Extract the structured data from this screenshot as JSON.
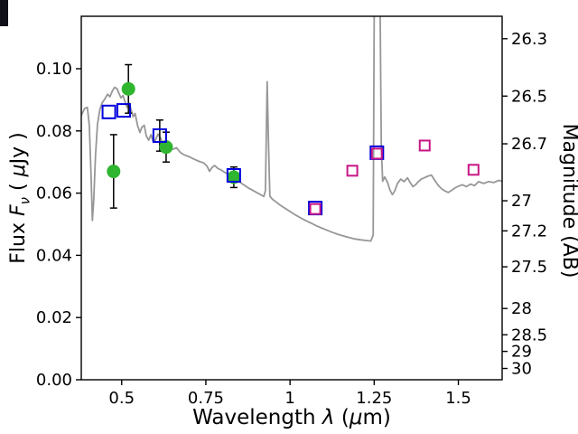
{
  "chart_data": {
    "type": "line+scatter",
    "title": "",
    "xlabel_parts": {
      "prefix": "Wavelength ",
      "lambda": "λ",
      "open": " (",
      "mu": "μ",
      "close": "m)"
    },
    "ylabel_left_parts": {
      "prefix": "Flux ",
      "f": "F",
      "nu": "ν",
      "open": " ( ",
      "mu": "μ",
      "close": "Jy )"
    },
    "ylabel_right": "Magnitude (AB)",
    "xlim": [
      0.38,
      1.63
    ],
    "ylim_flux": [
      0.0,
      0.11686
    ],
    "ab_zeropoint": 23.9,
    "grid": false,
    "legend": "none",
    "x_ticks": [
      {
        "v": 0.5,
        "label": "0.5"
      },
      {
        "v": 0.75,
        "label": "0.75"
      },
      {
        "v": 1.0,
        "label": "1"
      },
      {
        "v": 1.25,
        "label": "1.25"
      },
      {
        "v": 1.5,
        "label": "1.5"
      }
    ],
    "y_ticks_flux": [
      {
        "v": 0.0,
        "label": "0.00"
      },
      {
        "v": 0.02,
        "label": "0.02"
      },
      {
        "v": 0.04,
        "label": "0.04"
      },
      {
        "v": 0.06,
        "label": "0.06"
      },
      {
        "v": 0.08,
        "label": "0.08"
      },
      {
        "v": 0.1,
        "label": "0.10"
      }
    ],
    "y_ticks_mag": [
      {
        "v": 26.3,
        "label": "26.3"
      },
      {
        "v": 26.5,
        "label": "26.5"
      },
      {
        "v": 26.7,
        "label": "26.7"
      },
      {
        "v": 27.0,
        "label": "27"
      },
      {
        "v": 27.2,
        "label": "27.2"
      },
      {
        "v": 27.5,
        "label": "27.5"
      },
      {
        "v": 28.0,
        "label": "28"
      },
      {
        "v": 28.5,
        "label": "28.5"
      },
      {
        "v": 29.0,
        "label": "29"
      },
      {
        "v": 30.0,
        "label": "30"
      }
    ],
    "series": [
      {
        "name": "model-spectrum",
        "type": "line",
        "color": "#979797",
        "linewidth": 1.8,
        "points": [
          [
            0.38,
            0.085
          ],
          [
            0.39,
            0.0872
          ],
          [
            0.398,
            0.0876
          ],
          [
            0.404,
            0.0818
          ],
          [
            0.409,
            0.066
          ],
          [
            0.413,
            0.0512
          ],
          [
            0.417,
            0.0578
          ],
          [
            0.422,
            0.0718
          ],
          [
            0.428,
            0.082
          ],
          [
            0.435,
            0.0868
          ],
          [
            0.442,
            0.089
          ],
          [
            0.45,
            0.0903
          ],
          [
            0.458,
            0.0918
          ],
          [
            0.465,
            0.091
          ],
          [
            0.472,
            0.0928
          ],
          [
            0.479,
            0.094
          ],
          [
            0.486,
            0.0936
          ],
          [
            0.492,
            0.092
          ],
          [
            0.498,
            0.0906
          ],
          [
            0.504,
            0.0914
          ],
          [
            0.51,
            0.0893
          ],
          [
            0.516,
            0.0876
          ],
          [
            0.522,
            0.089
          ],
          [
            0.528,
            0.0868
          ],
          [
            0.534,
            0.0846
          ],
          [
            0.54,
            0.0856
          ],
          [
            0.547,
            0.0818
          ],
          [
            0.554,
            0.0795
          ],
          [
            0.56,
            0.0812
          ],
          [
            0.567,
            0.0818
          ],
          [
            0.573,
            0.0784
          ],
          [
            0.58,
            0.077
          ],
          [
            0.587,
            0.0788
          ],
          [
            0.594,
            0.0763
          ],
          [
            0.601,
            0.0773
          ],
          [
            0.608,
            0.079
          ],
          [
            0.616,
            0.0776
          ],
          [
            0.624,
            0.0754
          ],
          [
            0.632,
            0.0763
          ],
          [
            0.642,
            0.0748
          ],
          [
            0.652,
            0.0741
          ],
          [
            0.663,
            0.0746
          ],
          [
            0.675,
            0.073
          ],
          [
            0.688,
            0.0722
          ],
          [
            0.701,
            0.0717
          ],
          [
            0.715,
            0.0709
          ],
          [
            0.73,
            0.0702
          ],
          [
            0.744,
            0.0697
          ],
          [
            0.754,
            0.0686
          ],
          [
            0.761,
            0.067
          ],
          [
            0.768,
            0.0682
          ],
          [
            0.776,
            0.0689
          ],
          [
            0.786,
            0.0679
          ],
          [
            0.796,
            0.0674
          ],
          [
            0.806,
            0.0667
          ],
          [
            0.816,
            0.0661
          ],
          [
            0.826,
            0.0654
          ],
          [
            0.836,
            0.0647
          ],
          [
            0.846,
            0.0639
          ],
          [
            0.856,
            0.0631
          ],
          [
            0.866,
            0.0624
          ],
          [
            0.876,
            0.0617
          ],
          [
            0.886,
            0.0611
          ],
          [
            0.896,
            0.0605
          ],
          [
            0.906,
            0.0599
          ],
          [
            0.915,
            0.0594
          ],
          [
            0.922,
            0.0589
          ],
          [
            0.927,
            0.0608
          ],
          [
            0.932,
            0.0958
          ],
          [
            0.936,
            0.076
          ],
          [
            0.94,
            0.059
          ],
          [
            0.948,
            0.058
          ],
          [
            0.958,
            0.0572
          ],
          [
            0.97,
            0.0562
          ],
          [
            0.984,
            0.0552
          ],
          [
            1.0,
            0.0541
          ],
          [
            1.016,
            0.053
          ],
          [
            1.032,
            0.052
          ],
          [
            1.048,
            0.0511
          ],
          [
            1.064,
            0.0503
          ],
          [
            1.08,
            0.0494
          ],
          [
            1.096,
            0.0487
          ],
          [
            1.112,
            0.048
          ],
          [
            1.128,
            0.0473
          ],
          [
            1.144,
            0.0467
          ],
          [
            1.16,
            0.0462
          ],
          [
            1.176,
            0.0457
          ],
          [
            1.192,
            0.0453
          ],
          [
            1.208,
            0.045
          ],
          [
            1.224,
            0.0448
          ],
          [
            1.24,
            0.0446
          ],
          [
            1.247,
            0.0465
          ],
          [
            1.251,
            0.14
          ],
          [
            1.266,
            0.14
          ],
          [
            1.271,
            0.075
          ],
          [
            1.275,
            0.0638
          ],
          [
            1.281,
            0.0652
          ],
          [
            1.289,
            0.0636
          ],
          [
            1.297,
            0.0609
          ],
          [
            1.304,
            0.0595
          ],
          [
            1.311,
            0.0607
          ],
          [
            1.319,
            0.0631
          ],
          [
            1.329,
            0.0645
          ],
          [
            1.339,
            0.0637
          ],
          [
            1.349,
            0.0649
          ],
          [
            1.357,
            0.0634
          ],
          [
            1.365,
            0.0621
          ],
          [
            1.373,
            0.0627
          ],
          [
            1.381,
            0.0637
          ],
          [
            1.39,
            0.0645
          ],
          [
            1.4,
            0.065
          ],
          [
            1.41,
            0.0655
          ],
          [
            1.42,
            0.0658
          ],
          [
            1.43,
            0.0641
          ],
          [
            1.44,
            0.0625
          ],
          [
            1.45,
            0.0614
          ],
          [
            1.46,
            0.0607
          ],
          [
            1.47,
            0.0602
          ],
          [
            1.48,
            0.0609
          ],
          [
            1.49,
            0.0617
          ],
          [
            1.5,
            0.0622
          ],
          [
            1.512,
            0.0627
          ],
          [
            1.524,
            0.0621
          ],
          [
            1.536,
            0.0629
          ],
          [
            1.548,
            0.0624
          ],
          [
            1.56,
            0.0637
          ],
          [
            1.575,
            0.0631
          ],
          [
            1.59,
            0.0637
          ],
          [
            1.605,
            0.0634
          ],
          [
            1.62,
            0.0641
          ],
          [
            1.63,
            0.0638
          ]
        ]
      },
      {
        "name": "green-circle-photometry",
        "type": "scatter",
        "marker": "circle",
        "color": "#2fb52f",
        "size": 7.5,
        "stroke": 0,
        "points": [
          {
            "x": 0.476,
            "y": 0.067,
            "err": 0.0118
          },
          {
            "x": 0.52,
            "y": 0.0935,
            "err": 0.0078
          },
          {
            "x": 0.632,
            "y": 0.0748,
            "err": 0.0048
          },
          {
            "x": 0.833,
            "y": 0.0651,
            "err": 0.0033
          }
        ]
      },
      {
        "name": "blue-square-photometry",
        "type": "scatter",
        "marker": "square-open",
        "color": "#0000dd",
        "size": 14,
        "stroke": 2,
        "points": [
          {
            "x": 0.462,
            "y": 0.0861
          },
          {
            "x": 0.506,
            "y": 0.0866
          },
          {
            "x": 0.613,
            "y": 0.0785,
            "err": 0.005
          },
          {
            "x": 0.833,
            "y": 0.0657
          },
          {
            "x": 1.075,
            "y": 0.0552
          },
          {
            "x": 1.258,
            "y": 0.073
          }
        ]
      },
      {
        "name": "magenta-square-photometry",
        "type": "scatter",
        "marker": "square-open",
        "color": "#C71585",
        "size": 11,
        "stroke": 2,
        "points": [
          {
            "x": 1.075,
            "y": 0.0549
          },
          {
            "x": 1.185,
            "y": 0.0672
          },
          {
            "x": 1.258,
            "y": 0.0727
          },
          {
            "x": 1.4,
            "y": 0.0753
          },
          {
            "x": 1.545,
            "y": 0.0675
          }
        ]
      }
    ]
  }
}
